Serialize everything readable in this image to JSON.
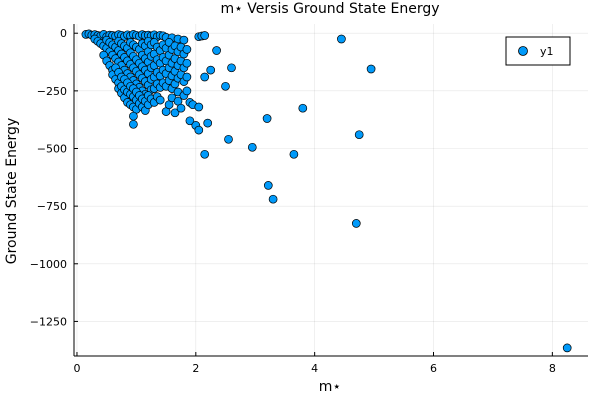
{
  "chart_data": {
    "type": "scatter",
    "title": "m⋆ Versis Ground State Energy",
    "xlabel": "m⋆",
    "ylabel": "Ground State Energy",
    "xlim": [
      -0.05,
      8.6
    ],
    "ylim": [
      -1400,
      40
    ],
    "x_ticks": [
      0,
      2,
      4,
      6,
      8
    ],
    "x_tick_labels": [
      "0",
      "2",
      "4",
      "6",
      "8"
    ],
    "y_ticks": [
      0,
      -250,
      -500,
      -750,
      -1000,
      -1250
    ],
    "y_tick_labels": [
      "0",
      "−250",
      "−500",
      "−750",
      "−1000",
      "−1250"
    ],
    "grid": true,
    "legend": {
      "position": "top-right",
      "entries": [
        "y1"
      ]
    },
    "series": [
      {
        "name": "y1",
        "color": "#009AFA",
        "points": [
          [
            0.15,
            -5
          ],
          [
            0.2,
            -3
          ],
          [
            0.25,
            -8
          ],
          [
            0.3,
            -6
          ],
          [
            0.35,
            -10
          ],
          [
            0.4,
            -12
          ],
          [
            0.45,
            -5
          ],
          [
            0.5,
            -15
          ],
          [
            0.55,
            -8
          ],
          [
            0.6,
            -10
          ],
          [
            0.65,
            -12
          ],
          [
            0.7,
            -6
          ],
          [
            0.75,
            -9
          ],
          [
            0.8,
            -14
          ],
          [
            0.85,
            -7
          ],
          [
            0.9,
            -11
          ],
          [
            0.95,
            -5
          ],
          [
            1.0,
            -9
          ],
          [
            1.05,
            -13
          ],
          [
            1.1,
            -6
          ],
          [
            1.15,
            -10
          ],
          [
            1.2,
            -8
          ],
          [
            1.25,
            -12
          ],
          [
            1.3,
            -7
          ],
          [
            1.35,
            -15
          ],
          [
            1.4,
            -9
          ],
          [
            1.45,
            -11
          ],
          [
            1.5,
            -18
          ],
          [
            1.6,
            -20
          ],
          [
            1.7,
            -25
          ],
          [
            1.8,
            -30
          ],
          [
            2.05,
            -15
          ],
          [
            2.1,
            -12
          ],
          [
            2.15,
            -10
          ],
          [
            0.3,
            -25
          ],
          [
            0.35,
            -35
          ],
          [
            0.4,
            -45
          ],
          [
            0.45,
            -55
          ],
          [
            0.5,
            -30
          ],
          [
            0.5,
            -65
          ],
          [
            0.55,
            -40
          ],
          [
            0.55,
            -80
          ],
          [
            0.6,
            -50
          ],
          [
            0.6,
            -95
          ],
          [
            0.65,
            -60
          ],
          [
            0.65,
            -110
          ],
          [
            0.7,
            -35
          ],
          [
            0.7,
            -75
          ],
          [
            0.7,
            -125
          ],
          [
            0.75,
            -45
          ],
          [
            0.75,
            -90
          ],
          [
            0.75,
            -140
          ],
          [
            0.8,
            -55
          ],
          [
            0.8,
            -105
          ],
          [
            0.8,
            -160
          ],
          [
            0.85,
            -65
          ],
          [
            0.85,
            -120
          ],
          [
            0.85,
            -175
          ],
          [
            0.9,
            -40
          ],
          [
            0.9,
            -85
          ],
          [
            0.9,
            -135
          ],
          [
            0.9,
            -190
          ],
          [
            0.95,
            -50
          ],
          [
            0.95,
            -100
          ],
          [
            0.95,
            -150
          ],
          [
            0.95,
            -205
          ],
          [
            1.0,
            -60
          ],
          [
            1.0,
            -115
          ],
          [
            1.0,
            -165
          ],
          [
            1.0,
            -220
          ],
          [
            1.05,
            -70
          ],
          [
            1.05,
            -130
          ],
          [
            1.05,
            -180
          ],
          [
            1.05,
            -235
          ],
          [
            1.1,
            -45
          ],
          [
            1.1,
            -95
          ],
          [
            1.1,
            -145
          ],
          [
            1.1,
            -195
          ],
          [
            1.1,
            -250
          ],
          [
            1.15,
            -55
          ],
          [
            1.15,
            -110
          ],
          [
            1.15,
            -160
          ],
          [
            1.15,
            -210
          ],
          [
            1.15,
            -265
          ],
          [
            1.2,
            -35
          ],
          [
            1.2,
            -80
          ],
          [
            1.2,
            -125
          ],
          [
            1.2,
            -175
          ],
          [
            1.2,
            -225
          ],
          [
            1.25,
            -50
          ],
          [
            1.25,
            -100
          ],
          [
            1.25,
            -150
          ],
          [
            1.25,
            -200
          ],
          [
            1.25,
            -245
          ],
          [
            1.3,
            -40
          ],
          [
            1.3,
            -90
          ],
          [
            1.3,
            -140
          ],
          [
            1.3,
            -190
          ],
          [
            1.3,
            -240
          ],
          [
            1.35,
            -60
          ],
          [
            1.35,
            -115
          ],
          [
            1.35,
            -170
          ],
          [
            1.35,
            -220
          ],
          [
            1.4,
            -75
          ],
          [
            1.4,
            -130
          ],
          [
            1.4,
            -185
          ],
          [
            1.4,
            -235
          ],
          [
            1.45,
            -50
          ],
          [
            1.45,
            -105
          ],
          [
            1.45,
            -160
          ],
          [
            1.45,
            -215
          ],
          [
            1.5,
            -65
          ],
          [
            1.5,
            -120
          ],
          [
            1.5,
            -175
          ],
          [
            1.5,
            -230
          ],
          [
            1.55,
            -40
          ],
          [
            1.55,
            -95
          ],
          [
            1.55,
            -150
          ],
          [
            1.55,
            -205
          ],
          [
            1.6,
            -70
          ],
          [
            1.6,
            -130
          ],
          [
            1.6,
            -185
          ],
          [
            1.6,
            -240
          ],
          [
            1.65,
            -55
          ],
          [
            1.65,
            -110
          ],
          [
            1.65,
            -165
          ],
          [
            1.65,
            -220
          ],
          [
            1.7,
            -80
          ],
          [
            1.7,
            -140
          ],
          [
            1.7,
            -195
          ],
          [
            1.7,
            -255
          ],
          [
            1.75,
            -60
          ],
          [
            1.75,
            -120
          ],
          [
            1.75,
            -180
          ],
          [
            1.8,
            -90
          ],
          [
            1.8,
            -150
          ],
          [
            1.8,
            -210
          ],
          [
            1.8,
            -270
          ],
          [
            1.85,
            -70
          ],
          [
            1.85,
            -130
          ],
          [
            1.85,
            -190
          ],
          [
            1.85,
            -250
          ],
          [
            0.45,
            -95
          ],
          [
            0.5,
            -120
          ],
          [
            0.55,
            -140
          ],
          [
            0.6,
            -160
          ],
          [
            0.6,
            -180
          ],
          [
            0.65,
            -200
          ],
          [
            0.65,
            -150
          ],
          [
            0.7,
            -170
          ],
          [
            0.7,
            -215
          ],
          [
            0.7,
            -240
          ],
          [
            0.75,
            -190
          ],
          [
            0.75,
            -230
          ],
          [
            0.75,
            -260
          ],
          [
            0.8,
            -200
          ],
          [
            0.8,
            -245
          ],
          [
            0.8,
            -280
          ],
          [
            0.85,
            -215
          ],
          [
            0.85,
            -255
          ],
          [
            0.85,
            -300
          ],
          [
            0.9,
            -230
          ],
          [
            0.9,
            -265
          ],
          [
            0.9,
            -310
          ],
          [
            0.95,
            -240
          ],
          [
            0.95,
            -275
          ],
          [
            0.95,
            -320
          ],
          [
            1.0,
            -255
          ],
          [
            1.0,
            -290
          ],
          [
            1.0,
            -330
          ],
          [
            1.05,
            -270
          ],
          [
            1.05,
            -305
          ],
          [
            1.1,
            -285
          ],
          [
            1.1,
            -320
          ],
          [
            1.15,
            -295
          ],
          [
            1.15,
            -335
          ],
          [
            1.2,
            -270
          ],
          [
            1.2,
            -310
          ],
          [
            1.25,
            -285
          ],
          [
            1.3,
            -300
          ],
          [
            1.35,
            -275
          ],
          [
            1.4,
            -290
          ],
          [
            0.95,
            -360
          ],
          [
            0.95,
            -395
          ],
          [
            1.5,
            -340
          ],
          [
            1.55,
            -310
          ],
          [
            1.6,
            -280
          ],
          [
            1.65,
            -345
          ],
          [
            1.7,
            -295
          ],
          [
            1.75,
            -325
          ],
          [
            1.9,
            -300
          ],
          [
            1.9,
            -380
          ],
          [
            1.95,
            -310
          ],
          [
            2.0,
            -400
          ],
          [
            2.05,
            -320
          ],
          [
            2.05,
            -420
          ],
          [
            2.2,
            -390
          ],
          [
            2.15,
            -525
          ],
          [
            2.15,
            -190
          ],
          [
            2.25,
            -160
          ],
          [
            2.35,
            -75
          ],
          [
            2.5,
            -230
          ],
          [
            2.55,
            -460
          ],
          [
            2.6,
            -150
          ],
          [
            2.95,
            -495
          ],
          [
            3.2,
            -370
          ],
          [
            3.22,
            -660
          ],
          [
            3.3,
            -720
          ],
          [
            3.65,
            -525
          ],
          [
            3.8,
            -325
          ],
          [
            4.45,
            -25
          ],
          [
            4.7,
            -825
          ],
          [
            4.75,
            -440
          ],
          [
            4.95,
            -155
          ],
          [
            8.25,
            -1365
          ]
        ]
      }
    ]
  }
}
